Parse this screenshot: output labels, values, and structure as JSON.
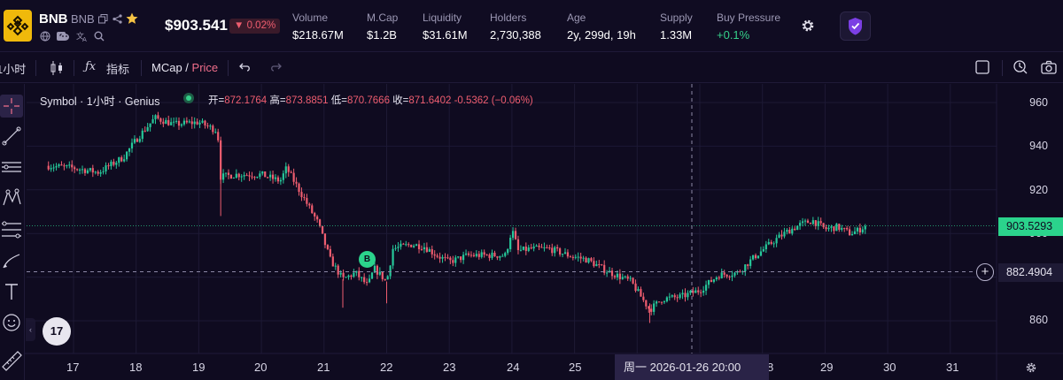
{
  "token": {
    "name": "BNB",
    "symbol": "BNB",
    "price": "$903.541",
    "change": "▼ 0.02%"
  },
  "stats": [
    {
      "label": "Volume",
      "value": "$218.67M"
    },
    {
      "label": "M.Cap",
      "value": "$1.2B"
    },
    {
      "label": "Liquidity",
      "value": "$31.61M"
    },
    {
      "label": "Holders",
      "value": "2,730,388"
    },
    {
      "label": "Age",
      "value": "2y, 299d, 19h"
    },
    {
      "label": "Supply",
      "value": "1.33M"
    },
    {
      "label": "Buy Pressure",
      "value": "+0.1%"
    }
  ],
  "toolbar": {
    "interval": "小时",
    "indicators": "指标",
    "mcap": "MCap",
    "slash": " / ",
    "price": "Price"
  },
  "legend": {
    "symbol": "Symbol · 1小时 · Genius",
    "open_label": "开=",
    "open": "872.1764",
    "high_label": "高=",
    "high": "873.8851",
    "low_label": "低=",
    "low": "870.7666",
    "close_label": "收=",
    "close": "871.6402",
    "change": "-0.5362 (−0.06%)"
  },
  "price_axis": {
    "ticks": [
      "960",
      "940",
      "920",
      "900",
      "880",
      "860"
    ],
    "last_price": "903.5293",
    "crosshair_price": "882.4904"
  },
  "time_axis": {
    "ticks": [
      "17",
      "18",
      "19",
      "20",
      "21",
      "22",
      "23",
      "24",
      "25",
      "29",
      "30",
      "31"
    ],
    "partial_tick": "8",
    "crosshair_time": "周一  2026-01-26    20:00"
  },
  "marker": {
    "label": "B"
  },
  "tv_logo": "17",
  "colors": {
    "up": "#26c89a",
    "down": "#ef5d6f",
    "accent": "#2bd38c",
    "background": "#0f0b20"
  },
  "chart_data": {
    "type": "candlestick",
    "title": "",
    "interval": "1小时",
    "ylim": [
      850,
      970
    ],
    "x_range_days": [
      16.5,
      31.5
    ],
    "path_x_days": [
      16.6,
      17.0,
      17.4,
      17.8,
      18.0,
      18.3,
      18.6,
      19.0,
      19.3,
      19.35,
      19.6,
      20.0,
      20.3,
      20.4,
      20.6,
      20.9,
      21.1,
      21.3,
      21.5,
      21.7,
      21.8,
      22.0,
      22.1,
      22.4,
      22.6,
      22.8,
      23.0,
      23.3,
      23.6,
      23.9,
      24.0,
      24.1,
      24.3,
      24.6,
      24.9,
      25.2,
      25.5,
      25.9,
      26.2,
      26.4,
      26.7,
      27.0,
      27.3,
      27.6,
      27.9,
      28.2,
      28.4,
      28.6,
      28.8,
      29.0,
      29.2,
      29.4,
      29.5,
      29.65
    ],
    "path_y_prices": [
      931,
      930,
      928,
      935,
      943,
      953,
      950,
      951,
      947,
      926,
      927,
      927,
      924,
      930,
      920,
      905,
      888,
      879,
      882,
      876,
      884,
      878,
      893,
      895,
      894,
      890,
      887,
      890,
      890,
      890,
      902,
      892,
      893,
      893,
      890,
      888,
      883,
      878,
      865,
      870,
      871,
      874,
      881,
      882,
      890,
      897,
      901,
      904,
      906,
      902,
      903,
      900,
      901,
      903.5
    ]
  }
}
